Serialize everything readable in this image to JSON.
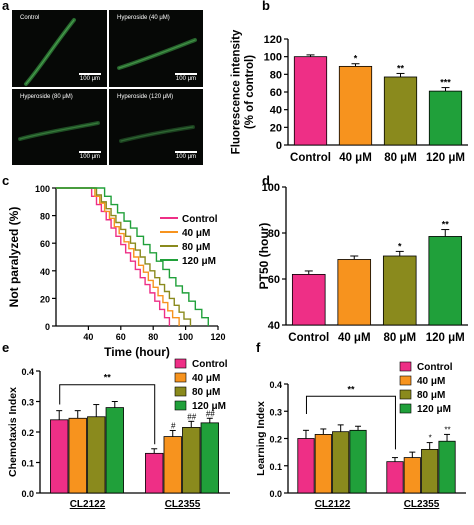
{
  "panel_labels": [
    "a",
    "b",
    "c",
    "d",
    "e",
    "f"
  ],
  "micrographs": [
    {
      "title": "Control",
      "scale": "100 μm"
    },
    {
      "title": "Hyperoside (40 μM)",
      "scale": "100 μm"
    },
    {
      "title": "Hyperoside (80 μM)",
      "scale": "100 μm"
    },
    {
      "title": "Hyperoside (120 μM)",
      "scale": "100 μm"
    }
  ],
  "colors": {
    "control": "#ee2f86",
    "c40": "#f7931e",
    "c80": "#8a8a1d",
    "c120": "#20a03a",
    "micro_bg": "#060806",
    "worm": "#2e7a36"
  },
  "chart_data": [
    {
      "id": "b",
      "type": "bar",
      "categories": [
        "Control",
        "40 μM",
        "80 μM",
        "120 μM"
      ],
      "values": [
        100,
        89,
        77,
        61
      ],
      "errors": [
        2,
        3,
        4,
        4
      ],
      "sig": [
        "",
        "*",
        "**",
        "***"
      ],
      "ylabel": "Fluorescence intensity\n(% of control)",
      "ylim": [
        0,
        120
      ],
      "yticks": [
        0,
        20,
        40,
        60,
        80,
        100,
        120
      ]
    },
    {
      "id": "c",
      "type": "line",
      "step": true,
      "x": [
        20,
        40,
        60,
        80,
        100,
        120
      ],
      "xticks": [
        40,
        60,
        80,
        100,
        120
      ],
      "xlim": [
        20,
        120
      ],
      "ylim": [
        0,
        100
      ],
      "yticks": [
        0,
        20,
        40,
        60,
        80,
        100
      ],
      "xlabel": "Time (hour)",
      "ylabel": "Not paralyzed (%)",
      "legend_position": "right",
      "series": [
        {
          "name": "Control",
          "color_key": "control",
          "steps": [
            [
              20,
              100
            ],
            [
              39,
              100
            ],
            [
              42,
              94
            ],
            [
              45,
              88
            ],
            [
              48,
              83
            ],
            [
              51,
              77
            ],
            [
              54,
              71
            ],
            [
              57,
              65
            ],
            [
              60,
              59
            ],
            [
              63,
              53
            ],
            [
              66,
              47
            ],
            [
              69,
              41
            ],
            [
              72,
              35
            ],
            [
              75,
              30
            ],
            [
              78,
              24
            ],
            [
              81,
              18
            ],
            [
              84,
              12
            ],
            [
              87,
              6
            ],
            [
              90,
              0
            ]
          ]
        },
        {
          "name": "40 μM",
          "color_key": "c40",
          "steps": [
            [
              20,
              100
            ],
            [
              41,
              100
            ],
            [
              44,
              94
            ],
            [
              47,
              89
            ],
            [
              50,
              83
            ],
            [
              53,
              78
            ],
            [
              56,
              72
            ],
            [
              59,
              67
            ],
            [
              62,
              61
            ],
            [
              65,
              56
            ],
            [
              68,
              50
            ],
            [
              71,
              44
            ],
            [
              74,
              39
            ],
            [
              77,
              33
            ],
            [
              80,
              28
            ],
            [
              83,
              22
            ],
            [
              86,
              17
            ],
            [
              89,
              11
            ],
            [
              92,
              6
            ],
            [
              96,
              0
            ]
          ]
        },
        {
          "name": "80 μM",
          "color_key": "c80",
          "steps": [
            [
              20,
              100
            ],
            [
              42,
              100
            ],
            [
              45,
              95
            ],
            [
              48,
              90
            ],
            [
              51,
              85
            ],
            [
              54,
              80
            ],
            [
              57,
              75
            ],
            [
              60,
              70
            ],
            [
              63,
              65
            ],
            [
              66,
              60
            ],
            [
              69,
              55
            ],
            [
              72,
              50
            ],
            [
              75,
              45
            ],
            [
              78,
              40
            ],
            [
              81,
              35
            ],
            [
              84,
              30
            ],
            [
              87,
              25
            ],
            [
              90,
              20
            ],
            [
              93,
              15
            ],
            [
              96,
              10
            ],
            [
              99,
              5
            ],
            [
              103,
              0
            ]
          ]
        },
        {
          "name": "120 μM",
          "color_key": "c120",
          "steps": [
            [
              20,
              100
            ],
            [
              46,
              100
            ],
            [
              50,
              94
            ],
            [
              54,
              88
            ],
            [
              58,
              82
            ],
            [
              62,
              76
            ],
            [
              66,
              71
            ],
            [
              70,
              65
            ],
            [
              74,
              59
            ],
            [
              78,
              53
            ],
            [
              82,
              47
            ],
            [
              86,
              41
            ],
            [
              90,
              35
            ],
            [
              94,
              29
            ],
            [
              98,
              24
            ],
            [
              102,
              18
            ],
            [
              106,
              12
            ],
            [
              110,
              6
            ],
            [
              114,
              0
            ]
          ]
        }
      ]
    },
    {
      "id": "d",
      "type": "bar",
      "categories": [
        "Control",
        "40 μM",
        "80 μM",
        "120 μM"
      ],
      "values": [
        62,
        68.5,
        70,
        78.5
      ],
      "errors": [
        1.5,
        1.5,
        2,
        3
      ],
      "sig": [
        "",
        "",
        "*",
        "**"
      ],
      "ylabel": "PT50 (hour)",
      "ylim": [
        40,
        100
      ],
      "yticks": [
        40,
        60,
        80,
        100
      ]
    },
    {
      "id": "e",
      "type": "bar",
      "categories": [
        "CL2122",
        "CL2355"
      ],
      "series": [
        {
          "name": "Control",
          "color_key": "control",
          "values": [
            0.24,
            0.13
          ],
          "errors": [
            0.03,
            0.015
          ],
          "sig": [
            "",
            ""
          ]
        },
        {
          "name": "40 μM",
          "color_key": "c40",
          "values": [
            0.245,
            0.185
          ],
          "errors": [
            0.025,
            0.02
          ],
          "sig": [
            "",
            "#"
          ]
        },
        {
          "name": "80 μM",
          "color_key": "c80",
          "values": [
            0.25,
            0.215
          ],
          "errors": [
            0.04,
            0.02
          ],
          "sig": [
            "",
            "##"
          ]
        },
        {
          "name": "120 μM",
          "color_key": "c120",
          "values": [
            0.28,
            0.23
          ],
          "errors": [
            0.02,
            0.015
          ],
          "sig": [
            "",
            "##"
          ]
        }
      ],
      "ylabel": "Chemotaxis Index",
      "ylim": [
        0,
        0.4
      ],
      "yticks": [
        0.0,
        0.1,
        0.2,
        0.3,
        0.4
      ],
      "bracket": "**",
      "legend_position": "top-left"
    },
    {
      "id": "f",
      "type": "bar",
      "categories": [
        "CL2122",
        "CL2355"
      ],
      "series": [
        {
          "name": "Control",
          "color_key": "control",
          "values": [
            0.2,
            0.115
          ],
          "errors": [
            0.03,
            0.015
          ],
          "sig": [
            "",
            ""
          ]
        },
        {
          "name": "40 μM",
          "color_key": "c40",
          "values": [
            0.215,
            0.13
          ],
          "errors": [
            0.02,
            0.02
          ],
          "sig": [
            "",
            ""
          ]
        },
        {
          "name": "80 μM",
          "color_key": "c80",
          "values": [
            0.225,
            0.16
          ],
          "errors": [
            0.025,
            0.025
          ],
          "sig": [
            "",
            "*"
          ]
        },
        {
          "name": "120 μM",
          "color_key": "c120",
          "values": [
            0.23,
            0.19
          ],
          "errors": [
            0.015,
            0.025
          ],
          "sig": [
            "",
            "**"
          ]
        }
      ],
      "ylabel": "Learning Index",
      "ylim": [
        0,
        0.4
      ],
      "yticks": [
        0.0,
        0.1,
        0.2,
        0.3,
        0.4
      ],
      "bracket": "**",
      "legend_position": "top-right"
    }
  ]
}
